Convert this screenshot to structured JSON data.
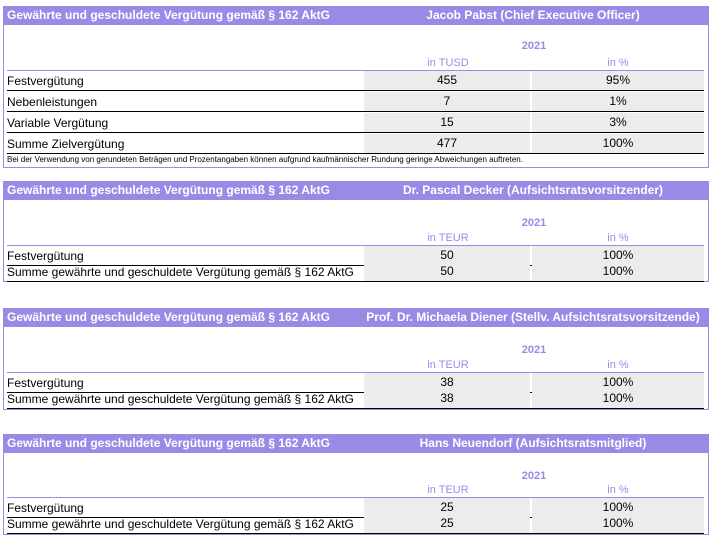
{
  "table1": {
    "header_left": "Gewährte und geschuldete Vergütung gemäß § 162 AktG",
    "header_right": "Jacob Pabst (Chief Executive Officer)",
    "year": "2021",
    "unit_value": "in TUSD",
    "unit_percent": "in %",
    "rows": [
      {
        "label": "Festvergütung",
        "value": "455",
        "percent": "95%"
      },
      {
        "label": "Nebenleistungen",
        "value": "7",
        "percent": "1%"
      },
      {
        "label": "Variable Vergütung",
        "value": "15",
        "percent": "3%"
      },
      {
        "label": "Summe Zielvergütung",
        "value": "477",
        "percent": "100%"
      }
    ],
    "note": "Bei der Verwendung von gerundeten Beträgen und Prozentangaben können aufgrund kaufmännischer Rundung geringe Abweichungen auftreten."
  },
  "table2": {
    "header_left": "Gewährte und geschuldete Vergütung gemäß § 162 AktG",
    "header_right": "Dr. Pascal Decker (Aufsichtsratsvorsitzender)",
    "year": "2021",
    "unit_value": "in TEUR",
    "unit_percent": "in %",
    "rows": [
      {
        "label": "Festvergütung",
        "value": "50",
        "percent": "100%"
      },
      {
        "label": "Summe gewährte und geschuldete Vergütung gemäß § 162 AktG",
        "value": "50",
        "percent": "100%"
      }
    ]
  },
  "table3": {
    "header_left": "Gewährte und geschuldete Vergütung gemäß § 162 AktG",
    "header_right": "Prof. Dr. Michaela Diener (Stellv. Aufsichtsratsvorsitzende)",
    "year": "2021",
    "unit_value": "in TEUR",
    "unit_percent": "in %",
    "rows": [
      {
        "label": "Festvergütung",
        "value": "38",
        "percent": "100%"
      },
      {
        "label": "Summe gewährte und geschuldete Vergütung gemäß § 162 AktG",
        "value": "38",
        "percent": "100%"
      }
    ]
  },
  "table4": {
    "header_left": "Gewährte und geschuldete Vergütung gemäß § 162 AktG",
    "header_right": "Hans Neuendorf (Aufsichtsratsmitglied)",
    "year": "2021",
    "unit_value": "in TEUR",
    "unit_percent": "in %",
    "rows": [
      {
        "label": "Festvergütung",
        "value": "25",
        "percent": "100%"
      },
      {
        "label": "Summe gewährte und geschuldete Vergütung gemäß § 162 AktG",
        "value": "25",
        "percent": "100%"
      }
    ]
  }
}
